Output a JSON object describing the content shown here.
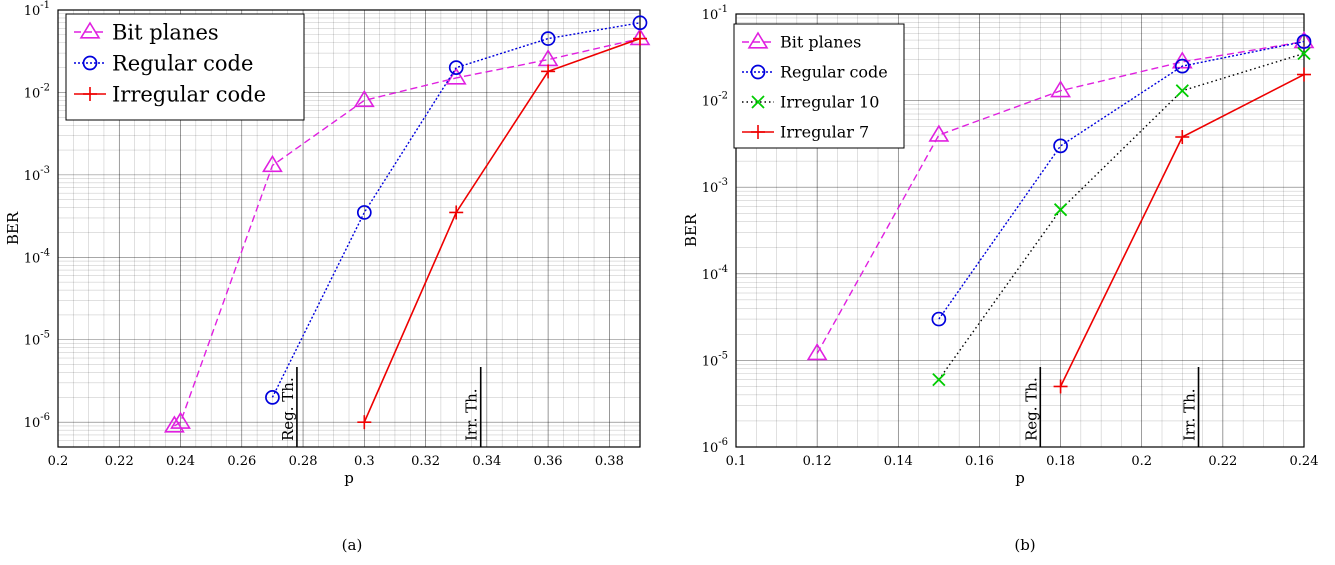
{
  "figure": {
    "captions": [
      "(a)",
      "(b)"
    ]
  },
  "chart_data": [
    {
      "type": "line",
      "panel": "a",
      "xlabel": "p",
      "ylabel": "BER",
      "xlim": [
        0.2,
        0.39
      ],
      "ylim": [
        5e-07,
        0.1
      ],
      "yscale": "log",
      "xticks": [
        0.2,
        0.22,
        0.24,
        0.26,
        0.28,
        0.3,
        0.32,
        0.34,
        0.36,
        0.38
      ],
      "xtick_labels": [
        "0.2",
        "0.22",
        "0.24",
        "0.26",
        "0.28",
        "0.3",
        "0.32",
        "0.34",
        "0.36",
        "0.38"
      ],
      "yticks": [
        1e-06,
        1e-05,
        0.0001,
        0.001,
        0.01,
        0.1
      ],
      "ytick_labels": [
        "10-6",
        "10-5",
        "10-4",
        "10-3",
        "10-2",
        "10-1"
      ],
      "grid": true,
      "legend_position": "top-left",
      "series": [
        {
          "name": "Bit planes",
          "color": "#e020e0",
          "dash": "dashed",
          "marker": "triangle",
          "x": [
            0.238,
            0.24,
            0.27,
            0.3,
            0.33,
            0.36,
            0.39
          ],
          "y": [
            9e-07,
            1e-06,
            0.0013,
            0.008,
            0.015,
            0.025,
            0.045
          ]
        },
        {
          "name": "Regular code",
          "color": "#0000dd",
          "dash": "dotted",
          "marker": "circle",
          "x": [
            0.27,
            0.3,
            0.33,
            0.36,
            0.39
          ],
          "y": [
            2e-06,
            0.00035,
            0.02,
            0.045,
            0.07
          ]
        },
        {
          "name": "Irregular code",
          "color": "#ee0000",
          "dash": "solid",
          "marker": "plus",
          "x": [
            0.3,
            0.33,
            0.36,
            0.39
          ],
          "y": [
            1e-06,
            0.00035,
            0.018,
            0.045
          ]
        }
      ],
      "thresholds": [
        {
          "label": "Reg. Th.",
          "x": 0.278
        },
        {
          "label": "Irr. Th.",
          "x": 0.338
        }
      ]
    },
    {
      "type": "line",
      "panel": "b",
      "xlabel": "p",
      "ylabel": "BER",
      "xlim": [
        0.1,
        0.24
      ],
      "ylim": [
        1e-06,
        0.1
      ],
      "yscale": "log",
      "xticks": [
        0.1,
        0.12,
        0.14,
        0.16,
        0.18,
        0.2,
        0.22,
        0.24
      ],
      "xtick_labels": [
        "0.1",
        "0.12",
        "0.14",
        "0.16",
        "0.18",
        "0.2",
        "0.22",
        "0.24"
      ],
      "yticks": [
        1e-06,
        1e-05,
        0.0001,
        0.001,
        0.01,
        0.1
      ],
      "ytick_labels": [
        "10-6",
        "10-5",
        "10-4",
        "10-3",
        "10-2",
        "10-1"
      ],
      "grid": true,
      "legend_position": "top-left",
      "series": [
        {
          "name": "Bit planes",
          "color": "#e020e0",
          "dash": "dashed",
          "marker": "triangle",
          "x": [
            0.12,
            0.15,
            0.18,
            0.21,
            0.24
          ],
          "y": [
            1.2e-05,
            0.004,
            0.013,
            0.028,
            0.048
          ]
        },
        {
          "name": "Regular code",
          "color": "#0000dd",
          "dash": "dotted",
          "marker": "circle",
          "x": [
            0.15,
            0.18,
            0.21,
            0.24
          ],
          "y": [
            3e-05,
            0.003,
            0.025,
            0.048
          ]
        },
        {
          "name": "Irregular 10",
          "color": "#00cc00",
          "dash": "dotted-black",
          "marker": "x",
          "x": [
            0.15,
            0.18,
            0.21,
            0.24
          ],
          "y": [
            6e-06,
            0.00055,
            0.013,
            0.035
          ]
        },
        {
          "name": "Irregular 7",
          "color": "#ee0000",
          "dash": "solid",
          "marker": "plus",
          "x": [
            0.18,
            0.21,
            0.24
          ],
          "y": [
            5e-06,
            0.0038,
            0.02
          ]
        }
      ],
      "thresholds": [
        {
          "label": "Reg. Th.",
          "x": 0.175
        },
        {
          "label": "Irr. Th.",
          "x": 0.214
        }
      ]
    }
  ]
}
